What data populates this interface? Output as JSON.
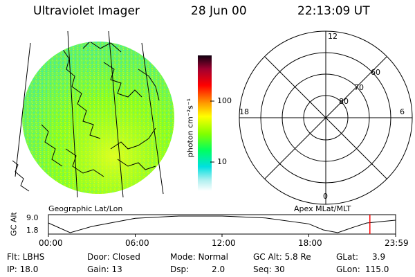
{
  "header": {
    "title": "Ultraviolet Imager",
    "date": "28 Jun 00",
    "time": "22:13:09 UT"
  },
  "panels": {
    "geo_label": "Geographic Lat/Lon",
    "apex_label": "Apex MLat/MLT"
  },
  "colorbar": {
    "unit_label": "photon cm⁻²s⁻¹",
    "ticks": [
      "100",
      "10"
    ],
    "colors": [
      "#ffffff",
      "#00e0e0",
      "#00ff40",
      "#a0ff00",
      "#ffff00",
      "#ff9900",
      "#ff0000",
      "#a00020",
      "#200020"
    ]
  },
  "polar": {
    "mlt_labels": {
      "top": "12",
      "left": "18",
      "right": "6",
      "bottom": "0"
    },
    "lat_labels": [
      "60",
      "70",
      "80"
    ]
  },
  "timeline": {
    "ylabel": "GC Alt",
    "y_ticks": [
      "9.0",
      "1.8"
    ],
    "x_ticks": [
      "00:00",
      "06:00",
      "12:00",
      "18:00",
      "23:59"
    ],
    "marker_color": "#ff0000",
    "marker_time_hours": 22.22,
    "orbit_curve_hours": [
      0,
      1.5,
      3,
      6,
      9,
      12,
      15,
      18,
      19,
      20,
      21,
      22,
      23.98
    ],
    "orbit_curve_alt": [
      6.0,
      1.8,
      4.5,
      8.0,
      9.0,
      9.0,
      8.2,
      5.6,
      3.0,
      1.8,
      4.0,
      6.0,
      7.2
    ]
  },
  "info": {
    "flt": "Flt: LBHS",
    "door": "Door: Closed",
    "mode": "Mode: Normal",
    "gcalt": "GC Alt: 5.8 Re",
    "glat_label": "GLat:",
    "glat_value": "3.9",
    "ip": "IP: 18.0",
    "gain": "Gain: 13",
    "dsp_label": "Dsp:",
    "dsp_value": "2.0",
    "seq": "Seq: 30",
    "glon_label": "GLon:",
    "glon_value": "115.0"
  }
}
